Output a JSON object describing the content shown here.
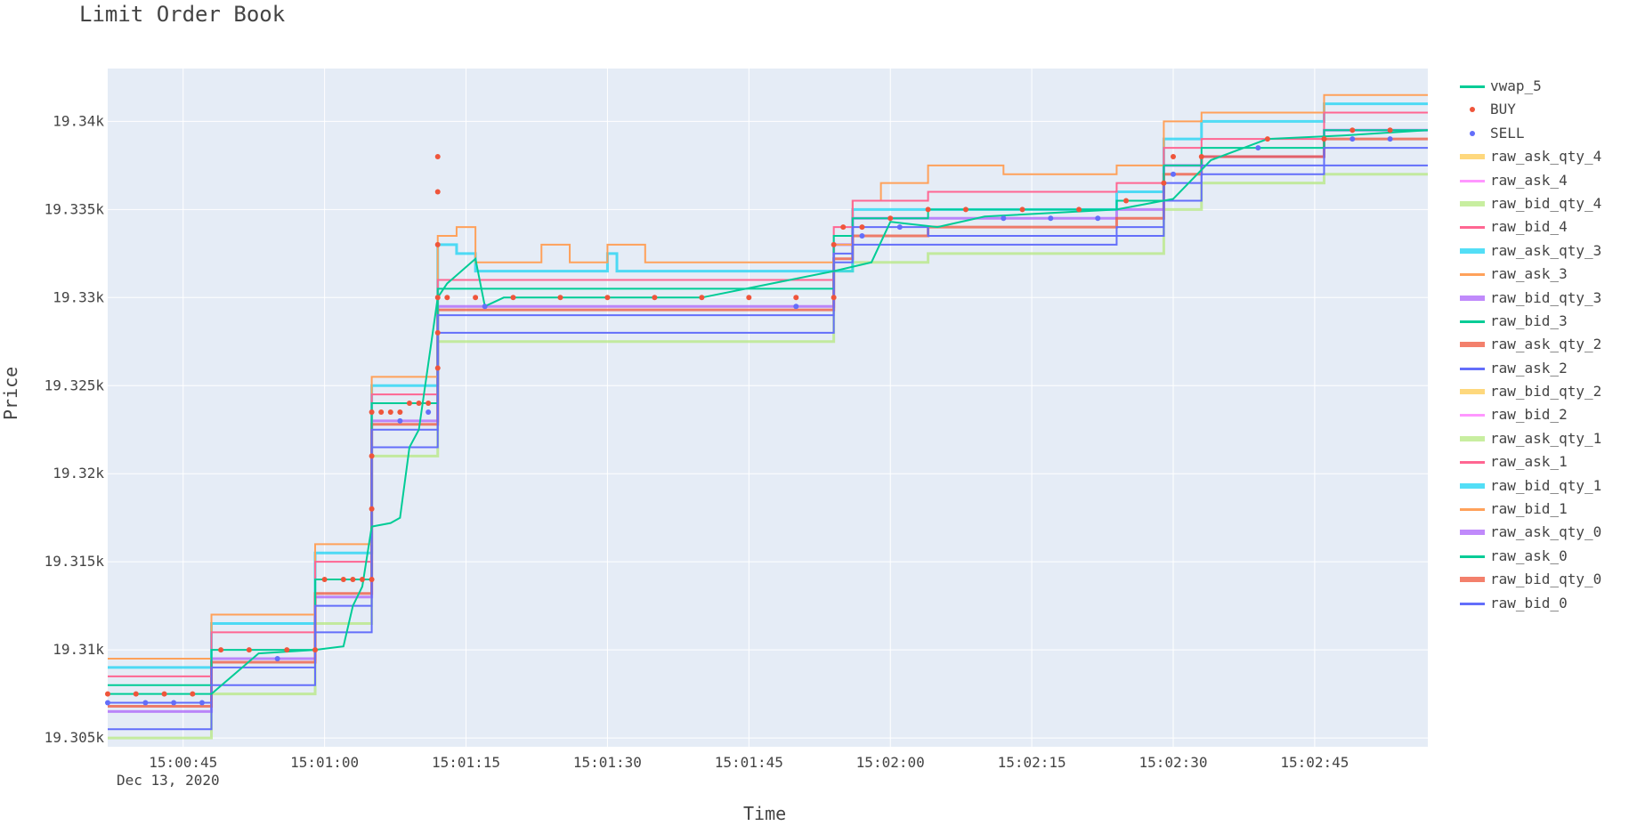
{
  "chart_data": {
    "type": "line",
    "title": "Limit Order Book",
    "xlabel": "Time",
    "ylabel": "Price",
    "date_label": "Dec 13, 2020",
    "x_ticks": [
      "15:00:45",
      "15:01:00",
      "15:01:15",
      "15:01:30",
      "15:01:45",
      "15:02:00",
      "15:02:15",
      "15:02:30",
      "15:02:45"
    ],
    "y_ticks": [
      "19.305k",
      "19.31k",
      "19.315k",
      "19.32k",
      "19.325k",
      "19.33k",
      "19.335k",
      "19.34k"
    ],
    "x_range": [
      "15:00:37",
      "15:02:57"
    ],
    "y_range": [
      19304.5,
      19343
    ],
    "grid": true,
    "legend_position": "right",
    "series": [
      {
        "name": "vwap_5",
        "kind": "line",
        "color": "#00cc96",
        "x": [
          "15:00:37",
          "15:00:48",
          "15:00:53",
          "15:00:59",
          "15:01:02",
          "15:01:03",
          "15:01:04",
          "15:01:05",
          "15:01:07",
          "15:01:08",
          "15:01:09",
          "15:01:10",
          "15:01:12",
          "15:01:13",
          "15:01:16",
          "15:01:17",
          "15:01:19",
          "15:01:25",
          "15:01:40",
          "15:01:54",
          "15:01:58",
          "15:02:00",
          "15:02:05",
          "15:02:10",
          "15:02:24",
          "15:02:30",
          "15:02:34",
          "15:02:40",
          "15:02:48",
          "15:02:57"
        ],
        "values": [
          19307.5,
          19307.5,
          19309.8,
          19310.0,
          19310.2,
          19312.5,
          19313.6,
          19317.0,
          19317.2,
          19317.5,
          19321.5,
          19322.5,
          19330.0,
          19330.8,
          19332.2,
          19329.5,
          19330.0,
          19330.0,
          19330.0,
          19331.5,
          19332.0,
          19334.3,
          19334.0,
          19334.6,
          19335.0,
          19335.6,
          19337.8,
          19339.0,
          19339.2,
          19339.5
        ]
      },
      {
        "name": "BUY",
        "kind": "markers",
        "color": "#ef553b",
        "x": [
          "15:00:37",
          "15:00:40",
          "15:00:43",
          "15:00:46",
          "15:00:49",
          "15:00:52",
          "15:00:56",
          "15:00:59",
          "15:01:00",
          "15:01:02",
          "15:01:03",
          "15:01:04",
          "15:01:05",
          "15:01:05",
          "15:01:05",
          "15:01:05",
          "15:01:06",
          "15:01:07",
          "15:01:08",
          "15:01:09",
          "15:01:10",
          "15:01:11",
          "15:01:12",
          "15:01:12",
          "15:01:12",
          "15:01:12",
          "15:01:12",
          "15:01:12",
          "15:01:13",
          "15:01:16",
          "15:01:20",
          "15:01:25",
          "15:01:30",
          "15:01:35",
          "15:01:40",
          "15:01:45",
          "15:01:50",
          "15:01:54",
          "15:01:54",
          "15:01:55",
          "15:01:57",
          "15:02:00",
          "15:02:04",
          "15:02:08",
          "15:02:14",
          "15:02:20",
          "15:02:25",
          "15:02:29",
          "15:02:30",
          "15:02:33",
          "15:02:40",
          "15:02:46",
          "15:02:49",
          "15:02:53"
        ],
        "values": [
          19307.5,
          19307.5,
          19307.5,
          19307.5,
          19310.0,
          19310.0,
          19310.0,
          19310.0,
          19314.0,
          19314.0,
          19314.0,
          19314.0,
          19314.0,
          19318.0,
          19321.0,
          19323.5,
          19323.5,
          19323.5,
          19323.5,
          19324.0,
          19324.0,
          19324.0,
          19326.0,
          19328.0,
          19330.0,
          19333.0,
          19336.0,
          19338.0,
          19330.0,
          19330.0,
          19330.0,
          19330.0,
          19330.0,
          19330.0,
          19330.0,
          19330.0,
          19330.0,
          19330.0,
          19333.0,
          19334.0,
          19334.0,
          19334.5,
          19335.0,
          19335.0,
          19335.0,
          19335.0,
          19335.5,
          19336.5,
          19338.0,
          19338.0,
          19339.0,
          19339.0,
          19339.5,
          19339.5
        ]
      },
      {
        "name": "SELL",
        "kind": "markers",
        "color": "#636efa",
        "x": [
          "15:00:37",
          "15:00:41",
          "15:00:44",
          "15:00:47",
          "15:00:55",
          "15:01:08",
          "15:01:11",
          "15:01:17",
          "15:01:50",
          "15:01:57",
          "15:02:01",
          "15:02:12",
          "15:02:17",
          "15:02:22",
          "15:02:30",
          "15:02:39",
          "15:02:49",
          "15:02:53"
        ],
        "values": [
          19307.0,
          19307.0,
          19307.0,
          19307.0,
          19309.5,
          19323.0,
          19323.5,
          19329.5,
          19329.5,
          19333.5,
          19334.0,
          19334.5,
          19334.5,
          19334.5,
          19337.0,
          19338.5,
          19339.0,
          19339.0
        ]
      },
      {
        "name": "raw_ask_qty_4",
        "kind": "qty",
        "color": "#fecb52",
        "x": [],
        "values": []
      },
      {
        "name": "raw_ask_4",
        "kind": "step",
        "color": "#ff97ff",
        "x": [],
        "values": []
      },
      {
        "name": "raw_bid_qty_4",
        "kind": "qty",
        "color": "#b6e880",
        "x": [],
        "values": []
      },
      {
        "name": "raw_bid_4",
        "kind": "step",
        "color": "#ff6692",
        "x": [],
        "values": []
      },
      {
        "name": "raw_ask_qty_3",
        "kind": "qty",
        "color": "#19d3f3",
        "x": [],
        "values": []
      },
      {
        "name": "raw_ask_3",
        "kind": "step",
        "color": "#ffa15a",
        "x": [
          "15:00:37",
          "15:00:48",
          "15:00:59",
          "15:01:05",
          "15:01:12",
          "15:01:14",
          "15:01:16",
          "15:01:23",
          "15:01:26",
          "15:01:30",
          "15:01:34",
          "15:01:54",
          "15:01:56",
          "15:01:59",
          "15:02:04",
          "15:02:12",
          "15:02:24",
          "15:02:29",
          "15:02:33",
          "15:02:46",
          "15:02:57"
        ],
        "values": [
          19309.5,
          19312.0,
          19316.0,
          19325.5,
          19333.5,
          19334.0,
          19332.0,
          19333.0,
          19332.0,
          19333.0,
          19332.0,
          19333.0,
          19335.5,
          19336.5,
          19337.5,
          19337.0,
          19337.5,
          19340.0,
          19340.5,
          19341.5,
          19341.5
        ]
      },
      {
        "name": "raw_bid_qty_3",
        "kind": "qty",
        "color": "#ab63fa",
        "x": [],
        "values": []
      },
      {
        "name": "raw_bid_3",
        "kind": "step",
        "color": "#00cc96",
        "x": [],
        "values": []
      },
      {
        "name": "raw_ask_qty_2",
        "kind": "qty",
        "color": "#ef553b",
        "x": [],
        "values": []
      },
      {
        "name": "raw_ask_2",
        "kind": "step",
        "color": "#636efa",
        "x": [
          "15:00:37",
          "15:00:48",
          "15:00:59",
          "15:01:05",
          "15:01:12",
          "15:01:54",
          "15:01:56",
          "15:02:04",
          "15:02:24",
          "15:02:29",
          "15:02:33",
          "15:02:46",
          "15:02:57"
        ],
        "values": [
          19305.5,
          19308.0,
          19311.0,
          19321.5,
          19328.0,
          19332.0,
          19333.0,
          19333.0,
          19333.5,
          19335.5,
          19337.0,
          19337.5,
          19337.5
        ]
      },
      {
        "name": "raw_bid_qty_2",
        "kind": "qty",
        "color": "#fecb52",
        "x": [],
        "values": []
      },
      {
        "name": "raw_bid_2",
        "kind": "step",
        "color": "#ff97ff",
        "x": [],
        "values": []
      },
      {
        "name": "raw_ask_qty_1",
        "kind": "qty",
        "color": "#b6e880",
        "x": [
          "15:00:37",
          "15:00:48",
          "15:00:59",
          "15:01:05",
          "15:01:12",
          "15:01:54",
          "15:01:56",
          "15:02:04",
          "15:02:24",
          "15:02:29",
          "15:02:33",
          "15:02:46",
          "15:02:57"
        ],
        "values": [
          19305.0,
          19307.5,
          19311.5,
          19321.0,
          19327.5,
          19331.5,
          19332.0,
          19332.5,
          19332.5,
          19335.0,
          19336.5,
          19337.0,
          19337.0
        ]
      },
      {
        "name": "raw_ask_1",
        "kind": "step",
        "color": "#ff6692",
        "x": [
          "15:00:37",
          "15:00:48",
          "15:00:59",
          "15:01:05",
          "15:01:12",
          "15:01:54",
          "15:01:56",
          "15:02:04",
          "15:02:24",
          "15:02:29",
          "15:02:33",
          "15:02:46",
          "15:02:57"
        ],
        "values": [
          19308.5,
          19311.0,
          19315.0,
          19324.5,
          19331.0,
          19334.0,
          19335.5,
          19336.0,
          19336.5,
          19338.5,
          19339.0,
          19340.5,
          19340.5
        ]
      },
      {
        "name": "raw_bid_qty_1",
        "kind": "qty",
        "color": "#19d3f3",
        "x": [
          "15:00:37",
          "15:00:48",
          "15:00:59",
          "15:01:05",
          "15:01:12",
          "15:01:14",
          "15:01:16",
          "15:01:26",
          "15:01:30",
          "15:01:31",
          "15:01:53",
          "15:01:56",
          "15:02:04",
          "15:02:24",
          "15:02:29",
          "15:02:33",
          "15:02:46",
          "15:02:57"
        ],
        "values": [
          19309.0,
          19311.5,
          19315.5,
          19325.0,
          19333.0,
          19332.5,
          19331.5,
          19331.5,
          19332.5,
          19331.5,
          19331.5,
          19335.0,
          19335.0,
          19336.0,
          19339.0,
          19340.0,
          19341.0,
          19341.0
        ]
      },
      {
        "name": "raw_bid_1",
        "kind": "step",
        "color": "#ffa15a",
        "x": [],
        "values": []
      },
      {
        "name": "raw_ask_qty_0",
        "kind": "qty",
        "color": "#ab63fa",
        "x": [
          "15:00:37",
          "15:00:48",
          "15:00:59",
          "15:01:05",
          "15:01:12",
          "15:01:54",
          "15:01:56",
          "15:02:04",
          "15:02:24",
          "15:02:29",
          "15:02:33",
          "15:02:46",
          "15:02:57"
        ],
        "values": [
          19306.5,
          19309.5,
          19313.0,
          19323.0,
          19329.5,
          19333.0,
          19334.5,
          19334.5,
          19335.0,
          19337.5,
          19338.0,
          19339.5,
          19339.5
        ]
      },
      {
        "name": "raw_ask_0",
        "kind": "step",
        "color": "#00cc96",
        "x": [
          "15:00:37",
          "15:00:48",
          "15:00:59",
          "15:01:05",
          "15:01:12",
          "15:01:54",
          "15:01:56",
          "15:02:04",
          "15:02:24",
          "15:02:29",
          "15:02:33",
          "15:02:46",
          "15:02:57"
        ],
        "values": [
          19308.0,
          19310.0,
          19314.0,
          19324.0,
          19330.5,
          19333.5,
          19334.5,
          19335.0,
          19335.5,
          19337.5,
          19338.5,
          19339.5,
          19339.5
        ]
      },
      {
        "name": "raw_bid_qty_0",
        "kind": "qty",
        "color": "#ef553b",
        "x": [
          "15:00:37",
          "15:00:48",
          "15:00:59",
          "15:01:05",
          "15:01:12",
          "15:01:54",
          "15:01:56",
          "15:02:04",
          "15:02:24",
          "15:02:29",
          "15:02:33",
          "15:02:46",
          "15:02:57"
        ],
        "values": [
          19306.8,
          19309.3,
          19313.2,
          19322.8,
          19329.3,
          19332.2,
          19333.5,
          19334.0,
          19334.5,
          19337.0,
          19338.0,
          19339.0,
          19339.0
        ]
      },
      {
        "name": "raw_bid_0",
        "kind": "step",
        "color": "#636efa",
        "x": [
          "15:00:37",
          "15:00:48",
          "15:00:59",
          "15:01:05",
          "15:01:12",
          "15:01:54",
          "15:01:56",
          "15:02:04",
          "15:02:24",
          "15:02:29",
          "15:02:33",
          "15:02:46",
          "15:02:57"
        ],
        "values": [
          19307.0,
          19309.0,
          19312.5,
          19322.5,
          19329.0,
          19332.5,
          19334.0,
          19333.5,
          19334.0,
          19336.5,
          19337.5,
          19338.5,
          19338.5
        ]
      }
    ]
  }
}
